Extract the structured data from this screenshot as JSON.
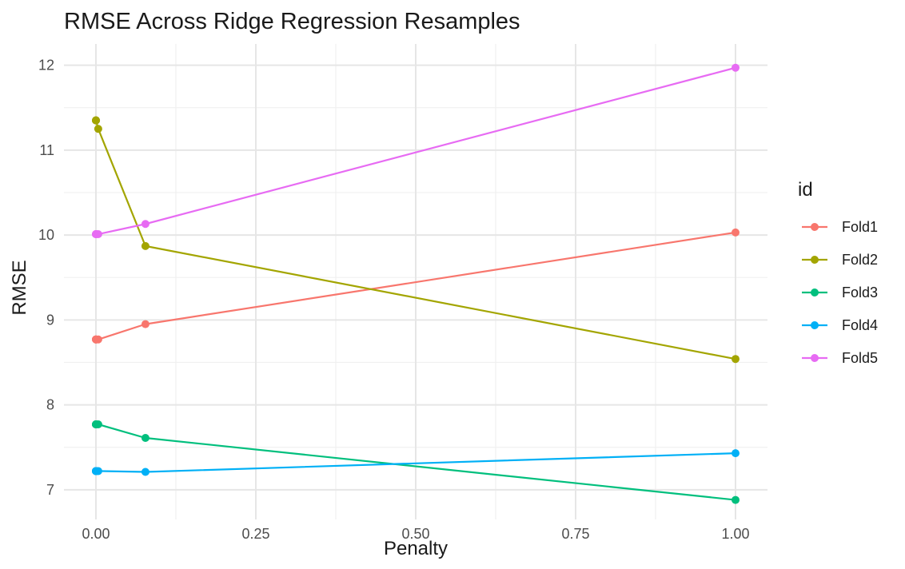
{
  "chart_data": {
    "type": "line",
    "title": "RMSE Across Ridge Regression Resamples",
    "xlabel": "Penalty",
    "ylabel": "RMSE",
    "xlim": [
      -0.05,
      1.05
    ],
    "ylim": [
      6.65,
      12.25
    ],
    "x_ticks": [
      0.0,
      0.25,
      0.5,
      0.75,
      1.0
    ],
    "x_tick_labels": [
      "0.00",
      "0.25",
      "0.50",
      "0.75",
      "1.00"
    ],
    "y_ticks": [
      7,
      8,
      9,
      10,
      11,
      12
    ],
    "y_tick_labels": [
      "7",
      "8",
      "9",
      "10",
      "11",
      "12"
    ],
    "grid": true,
    "legend": {
      "title": "id",
      "position": "right"
    },
    "x": [
      1e-10,
      7.7e-09,
      5.99e-07,
      4.64e-05,
      0.00359,
      0.0774,
      1.0
    ],
    "series": [
      {
        "name": "Fold1",
        "color": "#F8766D",
        "values": [
          8.77,
          8.77,
          8.77,
          8.77,
          8.77,
          8.95,
          10.03
        ]
      },
      {
        "name": "Fold2",
        "color": "#A3A500",
        "values": [
          11.35,
          11.35,
          11.35,
          11.35,
          11.25,
          9.87,
          8.54
        ]
      },
      {
        "name": "Fold3",
        "color": "#00BF7D",
        "values": [
          7.77,
          7.77,
          7.77,
          7.77,
          7.77,
          7.61,
          6.88
        ]
      },
      {
        "name": "Fold4",
        "color": "#00B0F6",
        "values": [
          7.22,
          7.22,
          7.22,
          7.22,
          7.22,
          7.21,
          7.43
        ]
      },
      {
        "name": "Fold5",
        "color": "#E76BF3",
        "values": [
          10.01,
          10.01,
          10.01,
          10.01,
          10.01,
          10.13,
          11.97
        ]
      }
    ]
  }
}
